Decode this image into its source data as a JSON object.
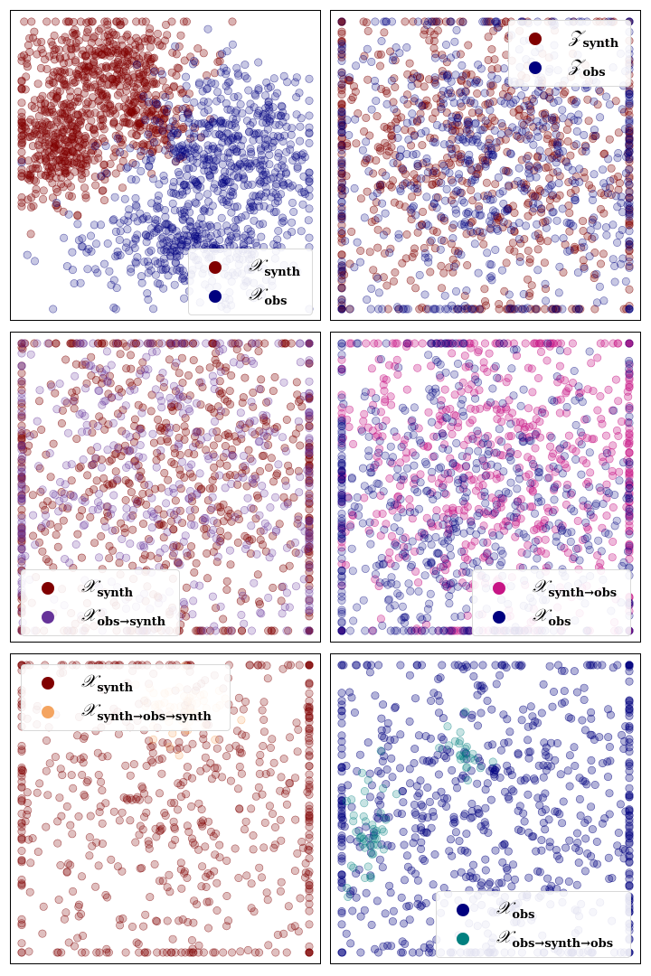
{
  "chart_data": [
    {
      "type": "scatter",
      "panel": "top-left",
      "legend_position": "bottom-right",
      "grid": false,
      "series": [
        {
          "name_base": "𝒳",
          "name_sub": "synth",
          "color": "#800000"
        },
        {
          "name_base": "𝒳",
          "name_sub": "obs",
          "color": "#00007f"
        }
      ]
    },
    {
      "type": "scatter",
      "panel": "top-right",
      "legend_position": "top-right",
      "grid": false,
      "series": [
        {
          "name_base": "𝒵",
          "name_sub": "synth",
          "color": "#800000"
        },
        {
          "name_base": "𝒵",
          "name_sub": "obs",
          "color": "#00007f"
        }
      ]
    },
    {
      "type": "scatter",
      "panel": "middle-left",
      "legend_position": "bottom-left",
      "grid": false,
      "series": [
        {
          "name_base": "𝒳",
          "name_sub": "synth",
          "color": "#800000"
        },
        {
          "name_base": "𝒳",
          "name_sub": "obs→synth",
          "color": "#663399"
        }
      ]
    },
    {
      "type": "scatter",
      "panel": "middle-right",
      "legend_position": "bottom-right",
      "grid": false,
      "series": [
        {
          "name_base": "𝒳",
          "name_sub": "synth→obs",
          "color": "#c71585"
        },
        {
          "name_base": "𝒳",
          "name_sub": "obs",
          "color": "#00007f"
        }
      ]
    },
    {
      "type": "scatter",
      "panel": "bottom-left",
      "legend_position": "top-left",
      "grid": false,
      "series": [
        {
          "name_base": "𝒳",
          "name_sub": "synth",
          "color": "#800000"
        },
        {
          "name_base": "𝒳",
          "name_sub": "synth→obs→synth",
          "color": "#f4a460"
        }
      ]
    },
    {
      "type": "scatter",
      "panel": "bottom-right",
      "legend_position": "bottom-right",
      "grid": false,
      "series": [
        {
          "name_base": "𝒳",
          "name_sub": "obs",
          "color": "#00007f"
        },
        {
          "name_base": "𝒳",
          "name_sub": "obs→synth→obs",
          "color": "#008080"
        }
      ]
    }
  ]
}
